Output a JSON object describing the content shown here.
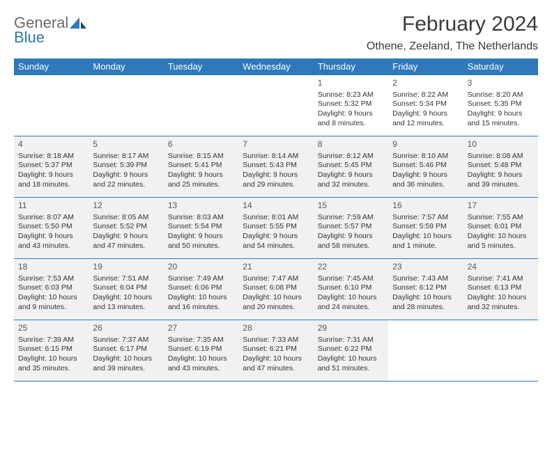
{
  "brand": {
    "general": "General",
    "blue": "Blue"
  },
  "title": "February 2024",
  "location": "Othene, Zeeland, The Netherlands",
  "colors": {
    "accent": "#2f78b9",
    "shade": "#f1f1f1",
    "text": "#333333",
    "bg": "#ffffff"
  },
  "calendar": {
    "days_of_week": [
      "Sunday",
      "Monday",
      "Tuesday",
      "Wednesday",
      "Thursday",
      "Friday",
      "Saturday"
    ],
    "leading_blanks": 4,
    "cells": [
      {
        "n": "1",
        "sr": "Sunrise: 8:23 AM",
        "ss": "Sunset: 5:32 PM",
        "dl": "Daylight: 9 hours and 8 minutes.",
        "sh": false
      },
      {
        "n": "2",
        "sr": "Sunrise: 8:22 AM",
        "ss": "Sunset: 5:34 PM",
        "dl": "Daylight: 9 hours and 12 minutes.",
        "sh": false
      },
      {
        "n": "3",
        "sr": "Sunrise: 8:20 AM",
        "ss": "Sunset: 5:35 PM",
        "dl": "Daylight: 9 hours and 15 minutes.",
        "sh": false
      },
      {
        "n": "4",
        "sr": "Sunrise: 8:18 AM",
        "ss": "Sunset: 5:37 PM",
        "dl": "Daylight: 9 hours and 18 minutes.",
        "sh": true
      },
      {
        "n": "5",
        "sr": "Sunrise: 8:17 AM",
        "ss": "Sunset: 5:39 PM",
        "dl": "Daylight: 9 hours and 22 minutes.",
        "sh": true
      },
      {
        "n": "6",
        "sr": "Sunrise: 8:15 AM",
        "ss": "Sunset: 5:41 PM",
        "dl": "Daylight: 9 hours and 25 minutes.",
        "sh": true
      },
      {
        "n": "7",
        "sr": "Sunrise: 8:14 AM",
        "ss": "Sunset: 5:43 PM",
        "dl": "Daylight: 9 hours and 29 minutes.",
        "sh": true
      },
      {
        "n": "8",
        "sr": "Sunrise: 8:12 AM",
        "ss": "Sunset: 5:45 PM",
        "dl": "Daylight: 9 hours and 32 minutes.",
        "sh": true
      },
      {
        "n": "9",
        "sr": "Sunrise: 8:10 AM",
        "ss": "Sunset: 5:46 PM",
        "dl": "Daylight: 9 hours and 36 minutes.",
        "sh": true
      },
      {
        "n": "10",
        "sr": "Sunrise: 8:08 AM",
        "ss": "Sunset: 5:48 PM",
        "dl": "Daylight: 9 hours and 39 minutes.",
        "sh": true
      },
      {
        "n": "11",
        "sr": "Sunrise: 8:07 AM",
        "ss": "Sunset: 5:50 PM",
        "dl": "Daylight: 9 hours and 43 minutes.",
        "sh": true
      },
      {
        "n": "12",
        "sr": "Sunrise: 8:05 AM",
        "ss": "Sunset: 5:52 PM",
        "dl": "Daylight: 9 hours and 47 minutes.",
        "sh": true
      },
      {
        "n": "13",
        "sr": "Sunrise: 8:03 AM",
        "ss": "Sunset: 5:54 PM",
        "dl": "Daylight: 9 hours and 50 minutes.",
        "sh": true
      },
      {
        "n": "14",
        "sr": "Sunrise: 8:01 AM",
        "ss": "Sunset: 5:55 PM",
        "dl": "Daylight: 9 hours and 54 minutes.",
        "sh": true
      },
      {
        "n": "15",
        "sr": "Sunrise: 7:59 AM",
        "ss": "Sunset: 5:57 PM",
        "dl": "Daylight: 9 hours and 58 minutes.",
        "sh": true
      },
      {
        "n": "16",
        "sr": "Sunrise: 7:57 AM",
        "ss": "Sunset: 5:59 PM",
        "dl": "Daylight: 10 hours and 1 minute.",
        "sh": true
      },
      {
        "n": "17",
        "sr": "Sunrise: 7:55 AM",
        "ss": "Sunset: 6:01 PM",
        "dl": "Daylight: 10 hours and 5 minutes.",
        "sh": true
      },
      {
        "n": "18",
        "sr": "Sunrise: 7:53 AM",
        "ss": "Sunset: 6:03 PM",
        "dl": "Daylight: 10 hours and 9 minutes.",
        "sh": true
      },
      {
        "n": "19",
        "sr": "Sunrise: 7:51 AM",
        "ss": "Sunset: 6:04 PM",
        "dl": "Daylight: 10 hours and 13 minutes.",
        "sh": true
      },
      {
        "n": "20",
        "sr": "Sunrise: 7:49 AM",
        "ss": "Sunset: 6:06 PM",
        "dl": "Daylight: 10 hours and 16 minutes.",
        "sh": true
      },
      {
        "n": "21",
        "sr": "Sunrise: 7:47 AM",
        "ss": "Sunset: 6:08 PM",
        "dl": "Daylight: 10 hours and 20 minutes.",
        "sh": true
      },
      {
        "n": "22",
        "sr": "Sunrise: 7:45 AM",
        "ss": "Sunset: 6:10 PM",
        "dl": "Daylight: 10 hours and 24 minutes.",
        "sh": true
      },
      {
        "n": "23",
        "sr": "Sunrise: 7:43 AM",
        "ss": "Sunset: 6:12 PM",
        "dl": "Daylight: 10 hours and 28 minutes.",
        "sh": true
      },
      {
        "n": "24",
        "sr": "Sunrise: 7:41 AM",
        "ss": "Sunset: 6:13 PM",
        "dl": "Daylight: 10 hours and 32 minutes.",
        "sh": true
      },
      {
        "n": "25",
        "sr": "Sunrise: 7:39 AM",
        "ss": "Sunset: 6:15 PM",
        "dl": "Daylight: 10 hours and 35 minutes.",
        "sh": true
      },
      {
        "n": "26",
        "sr": "Sunrise: 7:37 AM",
        "ss": "Sunset: 6:17 PM",
        "dl": "Daylight: 10 hours and 39 minutes.",
        "sh": true
      },
      {
        "n": "27",
        "sr": "Sunrise: 7:35 AM",
        "ss": "Sunset: 6:19 PM",
        "dl": "Daylight: 10 hours and 43 minutes.",
        "sh": true
      },
      {
        "n": "28",
        "sr": "Sunrise: 7:33 AM",
        "ss": "Sunset: 6:21 PM",
        "dl": "Daylight: 10 hours and 47 minutes.",
        "sh": true
      },
      {
        "n": "29",
        "sr": "Sunrise: 7:31 AM",
        "ss": "Sunset: 6:22 PM",
        "dl": "Daylight: 10 hours and 51 minutes.",
        "sh": true
      }
    ],
    "trailing_blanks": 2
  }
}
